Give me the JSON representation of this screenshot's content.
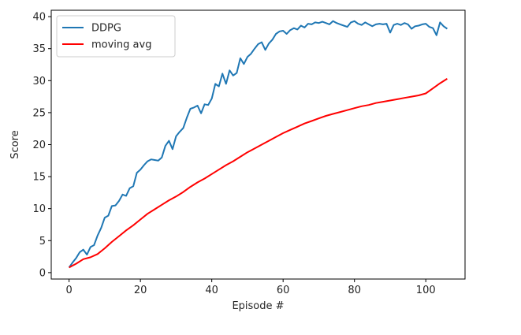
{
  "chart_data": {
    "type": "line",
    "title": "",
    "xlabel": "Episode #",
    "ylabel": "Score",
    "xlim": [
      -5,
      111
    ],
    "ylim": [
      -1,
      41
    ],
    "xticks": [
      0,
      20,
      40,
      60,
      80,
      100
    ],
    "yticks": [
      0,
      5,
      10,
      15,
      20,
      25,
      30,
      35,
      40
    ],
    "grid": false,
    "legend_position": "top-left",
    "series": [
      {
        "name": "DDPG",
        "color": "#1f77b4",
        "x": [
          0,
          1,
          2,
          3,
          4,
          5,
          6,
          7,
          8,
          9,
          10,
          11,
          12,
          13,
          14,
          15,
          16,
          17,
          18,
          19,
          20,
          21,
          22,
          23,
          24,
          25,
          26,
          27,
          28,
          29,
          30,
          31,
          32,
          33,
          34,
          35,
          36,
          37,
          38,
          39,
          40,
          41,
          42,
          43,
          44,
          45,
          46,
          47,
          48,
          49,
          50,
          51,
          52,
          53,
          54,
          55,
          56,
          57,
          58,
          59,
          60,
          61,
          62,
          63,
          64,
          65,
          66,
          67,
          68,
          69,
          70,
          71,
          72,
          73,
          74,
          75,
          76,
          77,
          78,
          79,
          80,
          81,
          82,
          83,
          84,
          85,
          86,
          87,
          88,
          89,
          90,
          91,
          92,
          93,
          94,
          95,
          96,
          97,
          98,
          99,
          100,
          101,
          102,
          103,
          104,
          105,
          106
        ],
        "y": [
          0.8,
          1.6,
          2.3,
          3.2,
          3.6,
          2.8,
          4.0,
          4.3,
          5.8,
          7.0,
          8.6,
          8.9,
          10.4,
          10.5,
          11.2,
          12.2,
          12.0,
          13.2,
          13.5,
          15.6,
          16.1,
          16.8,
          17.4,
          17.7,
          17.6,
          17.5,
          18.0,
          19.8,
          20.6,
          19.3,
          21.3,
          22.0,
          22.6,
          24.2,
          25.6,
          25.8,
          26.1,
          24.9,
          26.3,
          26.2,
          27.2,
          29.5,
          29.1,
          31.1,
          29.5,
          31.6,
          30.8,
          31.2,
          33.5,
          32.6,
          33.7,
          34.2,
          35.0,
          35.7,
          36.0,
          34.8,
          35.8,
          36.4,
          37.3,
          37.7,
          37.8,
          37.3,
          37.9,
          38.2,
          38.0,
          38.6,
          38.3,
          38.9,
          38.8,
          39.1,
          39.0,
          39.2,
          39.0,
          38.8,
          39.3,
          39.0,
          38.8,
          38.6,
          38.4,
          39.1,
          39.3,
          38.9,
          38.7,
          39.1,
          38.8,
          38.5,
          38.8,
          38.9,
          38.8,
          38.9,
          37.5,
          38.7,
          38.9,
          38.7,
          39.0,
          38.8,
          38.1,
          38.5,
          38.6,
          38.8,
          38.9,
          38.4,
          38.2,
          37.1,
          39.1,
          38.5,
          38.1
        ]
      },
      {
        "name": "moving avg",
        "color": "#ff0000",
        "x": [
          0,
          2,
          4,
          6,
          8,
          10,
          12,
          14,
          16,
          18,
          20,
          22,
          24,
          26,
          28,
          30,
          32,
          34,
          36,
          38,
          40,
          42,
          44,
          46,
          48,
          50,
          52,
          54,
          56,
          58,
          60,
          62,
          64,
          66,
          68,
          70,
          72,
          74,
          76,
          78,
          80,
          82,
          84,
          86,
          88,
          90,
          92,
          94,
          96,
          98,
          100,
          102,
          104,
          106
        ],
        "y": [
          0.8,
          1.4,
          2.1,
          2.4,
          2.9,
          3.8,
          4.8,
          5.7,
          6.6,
          7.4,
          8.3,
          9.2,
          9.9,
          10.6,
          11.3,
          11.9,
          12.6,
          13.4,
          14.1,
          14.7,
          15.4,
          16.1,
          16.8,
          17.4,
          18.1,
          18.8,
          19.4,
          20.0,
          20.6,
          21.2,
          21.8,
          22.3,
          22.8,
          23.3,
          23.7,
          24.1,
          24.5,
          24.8,
          25.1,
          25.4,
          25.7,
          26.0,
          26.2,
          26.5,
          26.7,
          26.9,
          27.1,
          27.3,
          27.5,
          27.7,
          28.0,
          28.8,
          29.6,
          30.3
        ]
      }
    ]
  }
}
